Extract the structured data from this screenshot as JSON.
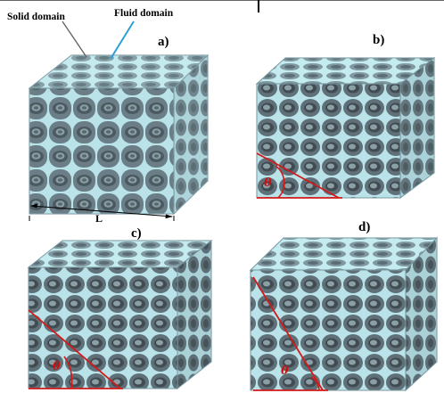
{
  "callouts": {
    "solid": "Solid domain",
    "fluid": "Fluid domain"
  },
  "panels": [
    {
      "id": "a",
      "label": "a)"
    },
    {
      "id": "b",
      "label": "b)"
    },
    {
      "id": "c",
      "label": "c)"
    },
    {
      "id": "d",
      "label": "d)"
    }
  ],
  "dimension_label": "L",
  "angle_symbol": "θ",
  "colors": {
    "solid": "#4d5962",
    "solid_dark": "#2f373e",
    "fluid": "#b9e3e8",
    "fluid_edge": "#6f8f98",
    "angle_line": "#d21a1a"
  }
}
